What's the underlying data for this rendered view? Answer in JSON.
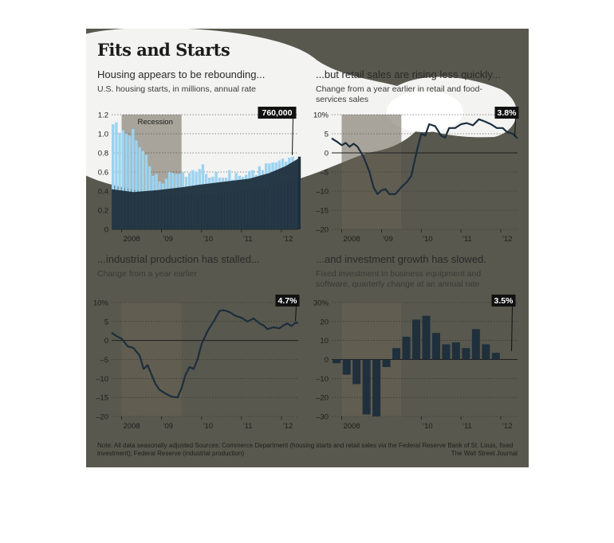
{
  "title": "Fits and Starts",
  "panels": [
    {
      "heading": "Housing appears to be rebounding...",
      "subheading": "U.S. housing starts, in millions, annual rate"
    },
    {
      "heading": "...but retail sales are rising less quickly...",
      "subheading": "Change from a year earlier in retail and food-services sales"
    },
    {
      "heading": "...industrial production has stalled...",
      "subheading": "Change from a year earlier"
    },
    {
      "heading": "...and investment growth has slowed.",
      "subheading": "Fixed investment in business equipment and software, quarterly change at an annual rate"
    }
  ],
  "note": "Note: All data seasonally adjusted    Sources: Commerce Department (housing starts and retail sales via the Federal Reserve Bank of St. Louis, fixed investment); Federal Reserve (industrial production)",
  "credit": "The Wall Street Journal",
  "colors": {
    "background": "#58584e",
    "spotlight": "#ffffff",
    "bar_light": "#9dd3f0",
    "area_dark": "#1f2f3c",
    "line": "#1c2e3d",
    "recession": "#6a6353"
  },
  "chart_data": [
    {
      "type": "bar",
      "title": "Housing appears to be rebounding...",
      "subtitle": "U.S. housing starts, in millions, annual rate",
      "ylim": [
        0,
        1.2
      ],
      "yticks": [
        "1.2",
        "1.0",
        "0.8",
        "0.6",
        "0.4",
        "0.2",
        "0"
      ],
      "ytick_values": [
        1.2,
        1.0,
        0.8,
        0.6,
        0.4,
        0.2,
        0
      ],
      "xticks": [
        "2008",
        "'09",
        "'10",
        "'11",
        "'12"
      ],
      "xtick_values": [
        2008,
        2009,
        2010,
        2011,
        2012
      ],
      "xlim": [
        2007.75,
        2012.42
      ],
      "recession": {
        "label": "Recession",
        "start": 2008.0,
        "end": 2009.5
      },
      "callout": {
        "label": "760,000",
        "x": 2012.25,
        "y": 0.76
      },
      "start": 2007.75,
      "step": 0.0833,
      "values": [
        1.1,
        1.12,
        1.01,
        1.04,
        1.0,
        0.98,
        1.05,
        0.93,
        0.86,
        0.82,
        0.78,
        0.66,
        0.56,
        0.58,
        0.5,
        0.48,
        0.53,
        0.6,
        0.59,
        0.58,
        0.58,
        0.6,
        0.55,
        0.59,
        0.62,
        0.6,
        0.63,
        0.68,
        0.58,
        0.54,
        0.55,
        0.6,
        0.54,
        0.54,
        0.54,
        0.62,
        0.52,
        0.59,
        0.56,
        0.55,
        0.57,
        0.61,
        0.62,
        0.57,
        0.66,
        0.62,
        0.69,
        0.69,
        0.7,
        0.7,
        0.72,
        0.74,
        0.71,
        0.75,
        0.76,
        0.72,
        0.76
      ],
      "lower_band_points": [
        [
          2007.75,
          0.42
        ],
        [
          2008.3,
          0.39
        ],
        [
          2008.9,
          0.41
        ],
        [
          2009.5,
          0.44
        ],
        [
          2010.0,
          0.47
        ],
        [
          2010.6,
          0.5
        ],
        [
          2011.2,
          0.53
        ],
        [
          2011.7,
          0.59
        ],
        [
          2012.1,
          0.66
        ],
        [
          2012.42,
          0.74
        ]
      ]
    },
    {
      "type": "line",
      "title": "...but retail sales are rising less quickly...",
      "subtitle": "Change from a year earlier in retail and food-services sales",
      "ylim": [
        -20,
        10
      ],
      "yticks": [
        "10%",
        "5",
        "0",
        "–5",
        "–10",
        "–15",
        "–20"
      ],
      "ytick_values": [
        10,
        5,
        0,
        -5,
        -10,
        -15,
        -20
      ],
      "xticks": [
        "2008",
        "'09",
        "'10",
        "'11",
        "'12"
      ],
      "xtick_values": [
        2008,
        2009,
        2010,
        2011,
        2012
      ],
      "xlim": [
        2007.75,
        2012.42
      ],
      "recession": {
        "start": 2008.0,
        "end": 2009.5
      },
      "callout": {
        "label": "3.8%",
        "x": 2012.33,
        "y": 3.8
      },
      "points": [
        [
          2007.75,
          3.8
        ],
        [
          2007.9,
          2.8
        ],
        [
          2008.0,
          2.0
        ],
        [
          2008.1,
          2.6
        ],
        [
          2008.2,
          1.6
        ],
        [
          2008.3,
          2.4
        ],
        [
          2008.4,
          1.6
        ],
        [
          2008.55,
          -1.0
        ],
        [
          2008.7,
          -5.0
        ],
        [
          2008.8,
          -9.0
        ],
        [
          2008.9,
          -10.8
        ],
        [
          2009.0,
          -9.8
        ],
        [
          2009.1,
          -9.5
        ],
        [
          2009.2,
          -10.8
        ],
        [
          2009.35,
          -10.8
        ],
        [
          2009.5,
          -9.0
        ],
        [
          2009.65,
          -7.5
        ],
        [
          2009.75,
          -6.0
        ],
        [
          2009.9,
          1.0
        ],
        [
          2010.0,
          5.0
        ],
        [
          2010.1,
          4.5
        ],
        [
          2010.2,
          7.5
        ],
        [
          2010.35,
          7.0
        ],
        [
          2010.5,
          4.5
        ],
        [
          2010.6,
          4.0
        ],
        [
          2010.7,
          6.5
        ],
        [
          2010.85,
          6.5
        ],
        [
          2011.0,
          7.5
        ],
        [
          2011.15,
          7.8
        ],
        [
          2011.3,
          7.2
        ],
        [
          2011.45,
          8.8
        ],
        [
          2011.6,
          8.2
        ],
        [
          2011.75,
          7.5
        ],
        [
          2011.9,
          6.5
        ],
        [
          2012.05,
          6.5
        ],
        [
          2012.15,
          5.5
        ],
        [
          2012.3,
          5.0
        ],
        [
          2012.42,
          3.8
        ]
      ]
    },
    {
      "type": "line",
      "title": "...industrial production has stalled...",
      "subtitle": "Change from a year earlier",
      "ylim": [
        -20,
        10
      ],
      "yticks": [
        "10%",
        "5",
        "0",
        "–5",
        "–10",
        "–15",
        "–20"
      ],
      "ytick_values": [
        10,
        5,
        0,
        -5,
        -10,
        -15,
        -20
      ],
      "xticks": [
        "2008",
        "'09",
        "'10",
        "'11",
        "'12"
      ],
      "xtick_values": [
        2008,
        2009,
        2010,
        2011,
        2012
      ],
      "xlim": [
        2007.75,
        2012.42
      ],
      "recession": {
        "start": 2008.0,
        "end": 2009.5
      },
      "callout": {
        "label": "4.7%",
        "x": 2012.33,
        "y": 4.7
      },
      "points": [
        [
          2007.75,
          2.0
        ],
        [
          2007.9,
          1.0
        ],
        [
          2008.0,
          0.5
        ],
        [
          2008.15,
          -1.5
        ],
        [
          2008.3,
          -2.0
        ],
        [
          2008.45,
          -4.0
        ],
        [
          2008.55,
          -7.5
        ],
        [
          2008.65,
          -6.5
        ],
        [
          2008.75,
          -9.0
        ],
        [
          2008.85,
          -11.5
        ],
        [
          2008.95,
          -13.0
        ],
        [
          2009.1,
          -14.0
        ],
        [
          2009.25,
          -14.8
        ],
        [
          2009.4,
          -15.0
        ],
        [
          2009.5,
          -12.5
        ],
        [
          2009.6,
          -9.0
        ],
        [
          2009.7,
          -7.0
        ],
        [
          2009.8,
          -7.5
        ],
        [
          2009.9,
          -5.0
        ],
        [
          2010.0,
          -1.0
        ],
        [
          2010.15,
          2.5
        ],
        [
          2010.3,
          5.0
        ],
        [
          2010.45,
          7.8
        ],
        [
          2010.55,
          8.0
        ],
        [
          2010.7,
          7.5
        ],
        [
          2010.85,
          6.5
        ],
        [
          2011.0,
          6.0
        ],
        [
          2011.15,
          5.0
        ],
        [
          2011.3,
          5.8
        ],
        [
          2011.45,
          4.5
        ],
        [
          2011.55,
          4.0
        ],
        [
          2011.65,
          3.0
        ],
        [
          2011.8,
          3.5
        ],
        [
          2011.95,
          3.2
        ],
        [
          2012.05,
          4.0
        ],
        [
          2012.15,
          4.5
        ],
        [
          2012.25,
          3.8
        ],
        [
          2012.35,
          4.7
        ],
        [
          2012.42,
          4.6
        ]
      ]
    },
    {
      "type": "bar",
      "title": "...and investment growth has slowed.",
      "subtitle": "Fixed investment in business equipment and software, quarterly change at an annual rate",
      "ylim": [
        -30,
        30
      ],
      "yticks": [
        "30%",
        "20",
        "10",
        "0",
        "–10",
        "–20",
        "–30"
      ],
      "ytick_values": [
        30,
        20,
        10,
        0,
        -10,
        -20,
        -30
      ],
      "xticks": [
        "2008",
        "'10",
        "'11",
        "'12"
      ],
      "xtick_values": [
        2008,
        2010,
        2011,
        2012
      ],
      "xlim": [
        2007.75,
        2012.42
      ],
      "recession": {
        "start": 2008.0,
        "end": 2009.5
      },
      "callout": {
        "label": "3.5%",
        "x": 2012.25,
        "y": 3.5
      },
      "start": 2007.875,
      "step": 0.25,
      "values": [
        -2.0,
        -8.0,
        -13.0,
        -29.0,
        -30.0,
        -4.0,
        6.0,
        12.0,
        21.0,
        23.0,
        14.0,
        8.0,
        9.0,
        6.0,
        16.0,
        8.0,
        3.5
      ]
    }
  ]
}
